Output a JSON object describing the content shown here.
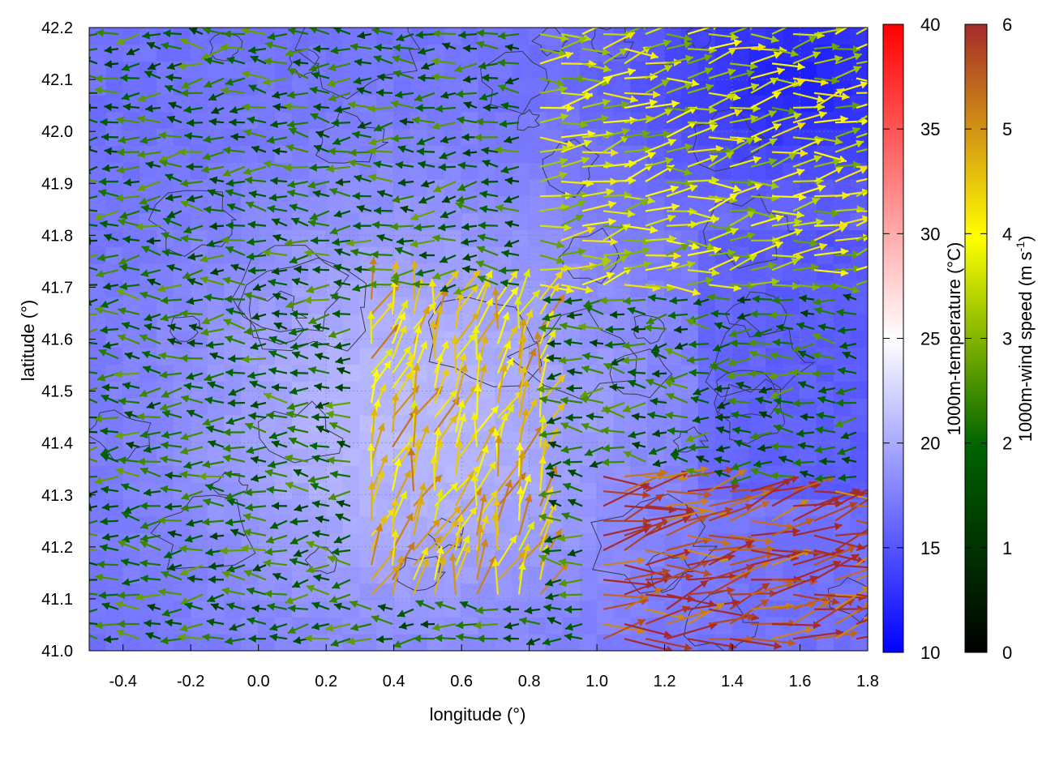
{
  "chart_data": {
    "type": "heatmap",
    "subtype": "map with temperature field, wind vectors and contour lines",
    "title": "",
    "xlabel": "longitude (°)",
    "ylabel": "latitude (°)",
    "xlim": [
      -0.5,
      1.8
    ],
    "ylim": [
      41.0,
      42.2
    ],
    "x_ticks": [
      "-0.4",
      "-0.2",
      "0.0",
      "0.2",
      "0.4",
      "0.6",
      "0.8",
      "1.0",
      "1.2",
      "1.4",
      "1.6",
      "1.8"
    ],
    "y_ticks": [
      "41.0",
      "41.1",
      "41.2",
      "41.3",
      "41.4",
      "41.5",
      "41.6",
      "41.7",
      "41.8",
      "41.9",
      "42.0",
      "42.1",
      "42.2"
    ],
    "grid": true,
    "colorbars": [
      {
        "label": "1000m-temperature (°C)",
        "range": [
          10,
          40
        ],
        "ticks": [
          "10",
          "15",
          "20",
          "25",
          "30",
          "35",
          "40"
        ],
        "colors": [
          "#0000ff",
          "#ffffff",
          "#ff0000"
        ],
        "position": "right"
      },
      {
        "label_main": "1000m-wind speed (m s",
        "label_sup": "-1",
        "label_end": ")",
        "range": [
          0,
          6
        ],
        "ticks": [
          "0",
          "1",
          "2",
          "3",
          "4",
          "5",
          "6"
        ],
        "colors": [
          "#000000",
          "#006400",
          "#ffff00",
          "#a52a2a"
        ],
        "position": "far-right"
      }
    ],
    "temperature_field_description_values": {
      "min": 12,
      "max": 21,
      "warm_core_lon_lat": [
        0.45,
        41.45
      ],
      "cold_region_lon_lat": [
        1.6,
        42.1
      ]
    },
    "wind_field_regimes": [
      {
        "region": "west",
        "speed": 2.0,
        "direction_deg": 180
      },
      {
        "region": "south-east",
        "speed": 5.8,
        "direction_deg": 10
      },
      {
        "region": "north-east",
        "speed": 3.5,
        "direction_deg": 8
      },
      {
        "region": "centre",
        "speed": 4.5,
        "direction_deg": 70
      }
    ]
  }
}
